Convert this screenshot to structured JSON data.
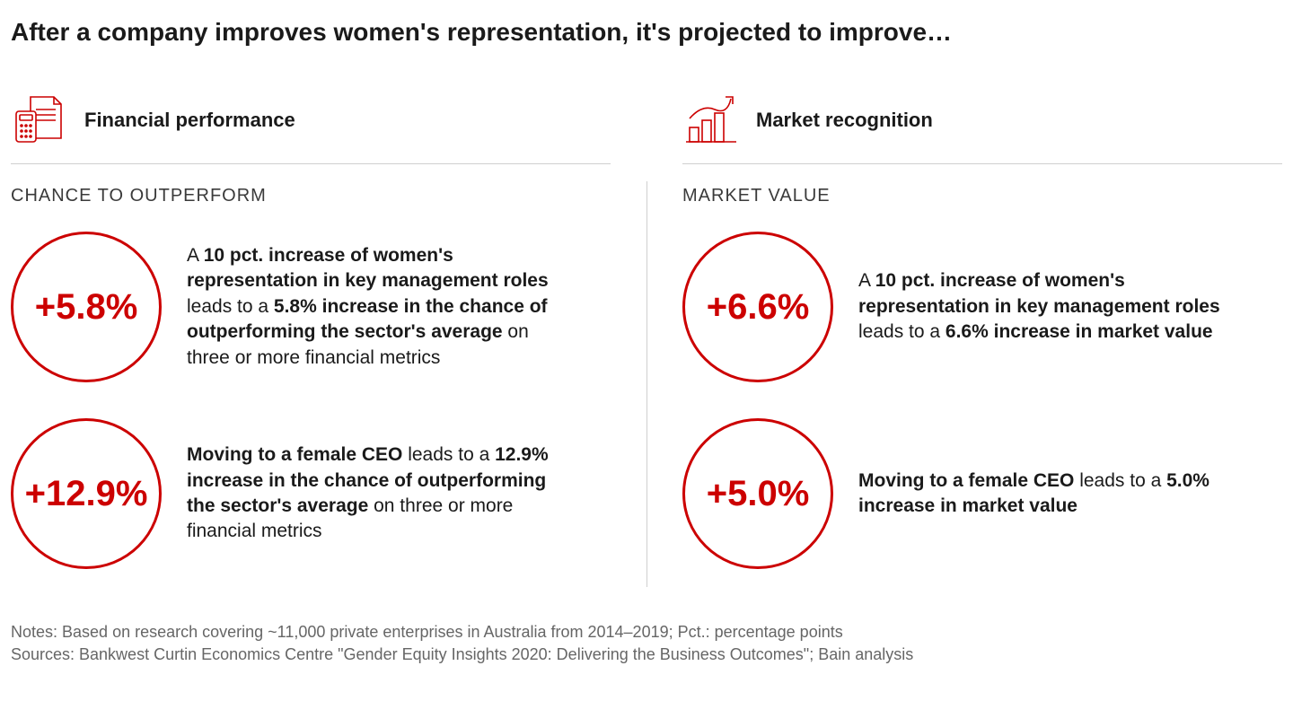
{
  "title": "After a company improves women's representation, it's projected to improve…",
  "accent_color": "#cc0000",
  "text_color": "#1a1a1a",
  "muted_color": "#666666",
  "columns": [
    {
      "icon": "calculator-doc",
      "header": "Financial performance",
      "sub": "CHANCE TO OUTPERFORM",
      "stats": [
        {
          "value": "+5.8%",
          "desc_parts": [
            "A ",
            "10 pct. increase of women's representation in key management roles",
            " leads to a ",
            "5.8% increase in the chance of outperforming the sector's average",
            " on three or more financial metrics"
          ],
          "bold_idx": [
            1,
            3
          ]
        },
        {
          "value": "+12.9%",
          "desc_parts": [
            "",
            "Moving to a female CEO",
            " leads to a ",
            "12.9% increase in the chance of outperforming the sector's average",
            " on three or more financial metrics"
          ],
          "bold_idx": [
            1,
            3
          ]
        }
      ]
    },
    {
      "icon": "bar-arrow",
      "header": "Market recognition",
      "sub": "MARKET VALUE",
      "stats": [
        {
          "value": "+6.6%",
          "desc_parts": [
            "A ",
            "10 pct. increase of women's representation in key management roles",
            " leads to a ",
            "6.6% increase in market value",
            ""
          ],
          "bold_idx": [
            1,
            3
          ]
        },
        {
          "value": "+5.0%",
          "desc_parts": [
            "",
            "Moving to a female CEO",
            " leads to a ",
            "5.0% increase in market value",
            ""
          ],
          "bold_idx": [
            1,
            3
          ]
        }
      ]
    }
  ],
  "notes_line1": "Notes: Based on research covering ~11,000 private enterprises in Australia from 2014–2019; Pct.: percentage points",
  "notes_line2": "Sources: Bankwest Curtin Economics Centre \"Gender Equity Insights 2020: Delivering the Business Outcomes\"; Bain analysis"
}
